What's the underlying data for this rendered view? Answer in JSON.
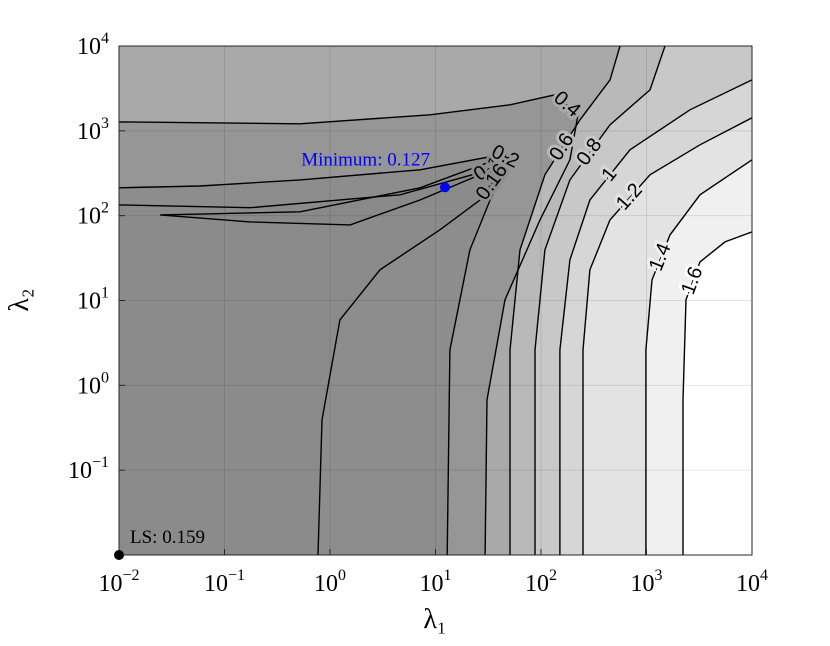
{
  "chart_data": {
    "type": "contour",
    "xlabel": "λ₁",
    "ylabel": "λ₂",
    "xscale": "log",
    "yscale": "log",
    "xlim": [
      0.01,
      10000
    ],
    "ylim": [
      0.01,
      10000
    ],
    "xticks": [
      {
        "value": 0.01,
        "label": "10",
        "exponent": "−2"
      },
      {
        "value": 0.1,
        "label": "10",
        "exponent": "−1"
      },
      {
        "value": 1,
        "label": "10",
        "exponent": "0"
      },
      {
        "value": 10,
        "label": "10",
        "exponent": "1"
      },
      {
        "value": 100,
        "label": "10",
        "exponent": "2"
      },
      {
        "value": 1000,
        "label": "10",
        "exponent": "3"
      },
      {
        "value": 10000,
        "label": "10",
        "exponent": "4"
      }
    ],
    "yticks": [
      {
        "value": 0.1,
        "label": "10",
        "exponent": "−1"
      },
      {
        "value": 1,
        "label": "10",
        "exponent": "0"
      },
      {
        "value": 10,
        "label": "10",
        "exponent": "1"
      },
      {
        "value": 100,
        "label": "10",
        "exponent": "2"
      },
      {
        "value": 1000,
        "label": "10",
        "exponent": "3"
      },
      {
        "value": 10000,
        "label": "10",
        "exponent": "4"
      }
    ],
    "grid": true,
    "base_color": "#898989",
    "line_color": "#000000",
    "contours": [
      {
        "level": 0.14,
        "color": "#8b8b8b",
        "x": [
          0.0245,
          0.52,
          7.13,
          32.9,
          45.6,
          26.4,
          7.13,
          1.55,
          0.175,
          0.0245
        ],
        "y": [
          102,
          111,
          213,
          431,
          481,
          303,
          153,
          77.9,
          84.5,
          102
        ]
      },
      {
        "level": 0.16,
        "color": "#8d8d8d",
        "x": [
          0.77,
          0.84,
          1.24,
          2.98,
          11.0,
          26.4,
          45.6,
          32.9,
          4.61,
          0.175,
          0.01
        ],
        "y": [
          0.01,
          0.391,
          5.9,
          23.0,
          68.1,
          153,
          397,
          347,
          176,
          124,
          134
        ]
      },
      {
        "level": 0.2,
        "color": "#969696",
        "x": [
          12.9,
          13.7,
          21.2,
          32.9,
          50.8,
          40.8,
          7.13,
          0.52,
          0.0586,
          0.01
        ],
        "y": [
          0.01,
          2.61,
          39.5,
          153,
          455,
          521,
          347,
          264,
          224,
          213
        ]
      },
      {
        "level": 0.4,
        "color": "#a9a9a9",
        "x": [
          29.5,
          30.8,
          45.6,
          97.9,
          188,
          224,
          136,
          50.8,
          8.87,
          0.52,
          0.01
        ],
        "y": [
          0.01,
          0.673,
          10.2,
          89.2,
          455,
          1545,
          2660,
          2028,
          1545,
          1210,
          1276
        ]
      },
      {
        "level": 0.6,
        "color": "#b9b9b9",
        "x": [
          50.8,
          50.8,
          63.2,
          109,
          234,
          451,
          561
        ],
        "y": [
          0.01,
          2.61,
          39.5,
          303,
          1349,
          3990,
          10000
        ]
      },
      {
        "level": 0.8,
        "color": "#c8c8c8",
        "x": [
          87.7,
          87.7,
          109,
          188,
          451,
          1079,
          1496
        ],
        "y": [
          0.01,
          2.61,
          39.5,
          264,
          1178,
          3041,
          10000
        ]
      },
      {
        "level": 1,
        "color": "#d6d6d6",
        "x": [
          151,
          151,
          188,
          291,
          698,
          2582,
          10000
        ],
        "y": [
          0.01,
          2.61,
          30.1,
          153,
          597,
          1770,
          3990
        ]
      },
      {
        "level": 1.2,
        "color": "#e3e3e3",
        "x": [
          250,
          250,
          291,
          451,
          1079,
          3214,
          10000
        ],
        "y": [
          0.01,
          2.61,
          23.0,
          89.2,
          303,
          684,
          1423
        ]
      },
      {
        "level": 1.4,
        "color": "#f0f0f0",
        "x": [
          988,
          988,
          1127,
          1671,
          3214,
          10000
        ],
        "y": [
          0.01,
          2.61,
          17.5,
          59.4,
          176,
          455
        ]
      },
      {
        "level": 1.6,
        "color": "#ffffff",
        "x": [
          2218,
          2218,
          2366,
          3214,
          5546,
          10000
        ],
        "y": [
          0.01,
          0.673,
          10.2,
          28.5,
          49.1,
          64.4
        ]
      }
    ],
    "points": [
      {
        "label": "Minimum: 0.127",
        "x": 12.3,
        "y": 216,
        "color": "#0000ff"
      },
      {
        "label": "LS: 0.159",
        "x": 0.01,
        "y": 0.01,
        "color": "#000000"
      }
    ]
  }
}
